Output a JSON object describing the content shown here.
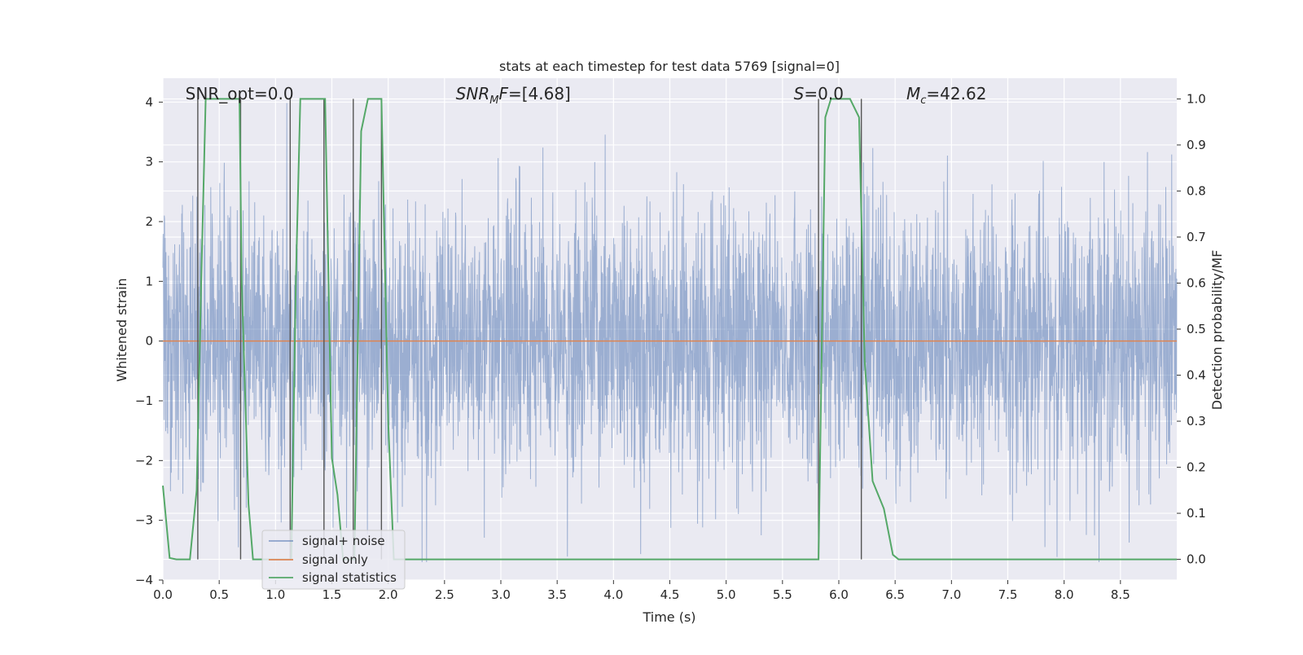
{
  "chart_data": {
    "type": "line",
    "title": "stats at each timestep for test data 5769 [signal=0]",
    "xlabel": "Time (s)",
    "ylabel": "Whitened strain",
    "y2label": "Detection probability/MF",
    "xlim": [
      0.0,
      9.0
    ],
    "ylim": [
      -4.0,
      4.4
    ],
    "y2lim": [
      -0.045,
      1.045
    ],
    "x_ticks": [
      "0.0",
      "0.5",
      "1.0",
      "1.5",
      "2.0",
      "2.5",
      "3.0",
      "3.5",
      "4.0",
      "4.5",
      "5.0",
      "5.5",
      "6.0",
      "6.5",
      "7.0",
      "7.5",
      "8.0",
      "8.5"
    ],
    "y_ticks": [
      "4",
      "3",
      "2",
      "1",
      "0",
      "−1",
      "−2",
      "−3",
      "−4"
    ],
    "y2_ticks": [
      "1.0",
      "0.9",
      "0.8",
      "0.7",
      "0.6",
      "0.5",
      "0.4",
      "0.3",
      "0.2",
      "0.1",
      "0.0"
    ],
    "grid": true,
    "legend_position": "lower-left",
    "annotations": [
      {
        "id": "snr-opt",
        "text": "SNR_opt=0.0",
        "x": 0.2
      },
      {
        "id": "snr-mf",
        "prefix": "SNR",
        "sub": "M",
        "suffix": "F=[4.68]",
        "x": 2.6
      },
      {
        "id": "s",
        "prefix": "S",
        "suffix": "=0.0",
        "x": 5.6
      },
      {
        "id": "mc",
        "prefix": "M",
        "sub": "c",
        "suffix": "=42.62",
        "x": 6.6
      }
    ],
    "series": [
      {
        "name": "signal+ noise",
        "color": "#4c72b0",
        "noise_description": "whitened noise, approx. Gaussian, amplitude up to about ±4",
        "envelope_max": 4.0,
        "envelope_min": -3.7
      },
      {
        "name": "signal only",
        "color": "#dd8452",
        "x": [
          0.0,
          9.0
        ],
        "y": [
          0.0,
          0.0
        ]
      },
      {
        "name": "signal statistics",
        "color": "#55a868",
        "axis": "right",
        "x": [
          0.0,
          0.06,
          0.12,
          0.18,
          0.24,
          0.3,
          0.34,
          0.38,
          0.44,
          0.5,
          0.56,
          0.62,
          0.68,
          0.7,
          0.76,
          0.8,
          0.85,
          0.95,
          1.05,
          1.1,
          1.14,
          1.18,
          1.22,
          1.3,
          1.4,
          1.44,
          1.5,
          1.55,
          1.6,
          1.66,
          1.7,
          1.76,
          1.82,
          1.88,
          1.94,
          2.0,
          2.05,
          2.1,
          2.5,
          3.0,
          3.5,
          4.0,
          4.5,
          5.0,
          5.5,
          5.82,
          5.88,
          5.93,
          6.0,
          6.1,
          6.18,
          6.23,
          6.3,
          6.4,
          6.48,
          6.53,
          7.0,
          7.5,
          8.0,
          8.5,
          9.0
        ],
        "y": [
          0.16,
          0.003,
          0.0,
          0.0,
          0.0,
          0.15,
          0.6,
          1.0,
          1.0,
          1.0,
          1.0,
          1.0,
          1.0,
          0.6,
          0.12,
          0.0,
          0.0,
          0.0,
          0.0,
          0.0,
          0.0,
          0.6,
          1.0,
          1.0,
          1.0,
          1.0,
          0.22,
          0.14,
          0.0,
          0.0,
          0.0,
          0.93,
          1.0,
          1.0,
          1.0,
          0.3,
          0.0,
          0.0,
          0.0,
          0.0,
          0.0,
          0.0,
          0.0,
          0.0,
          0.0,
          0.0,
          0.96,
          1.0,
          1.0,
          1.0,
          0.96,
          0.43,
          0.17,
          0.11,
          0.01,
          0.0,
          0.0,
          0.0,
          0.0,
          0.0,
          0.0
        ]
      }
    ],
    "vertical_markers": [
      {
        "x": 0.31,
        "y_top": 1.0,
        "y_bottom": 0.0
      },
      {
        "x": 0.69,
        "y_top": 1.0,
        "y_bottom": 0.0
      },
      {
        "x": 1.13,
        "y_top": 1.0,
        "y_bottom": 0.0
      },
      {
        "x": 1.43,
        "y_top": 1.0,
        "y_bottom": 0.0
      },
      {
        "x": 1.69,
        "y_top": 1.0,
        "y_bottom": 0.0
      },
      {
        "x": 1.94,
        "y_top": 1.0,
        "y_bottom": 0.0
      },
      {
        "x": 5.82,
        "y_top": 1.0,
        "y_bottom": 0.0
      },
      {
        "x": 6.2,
        "y_top": 1.0,
        "y_bottom": 0.0
      }
    ],
    "colors": {
      "plot_background": "#eaeaf2",
      "grid": "#ffffff",
      "marker_line": "#555555"
    }
  }
}
